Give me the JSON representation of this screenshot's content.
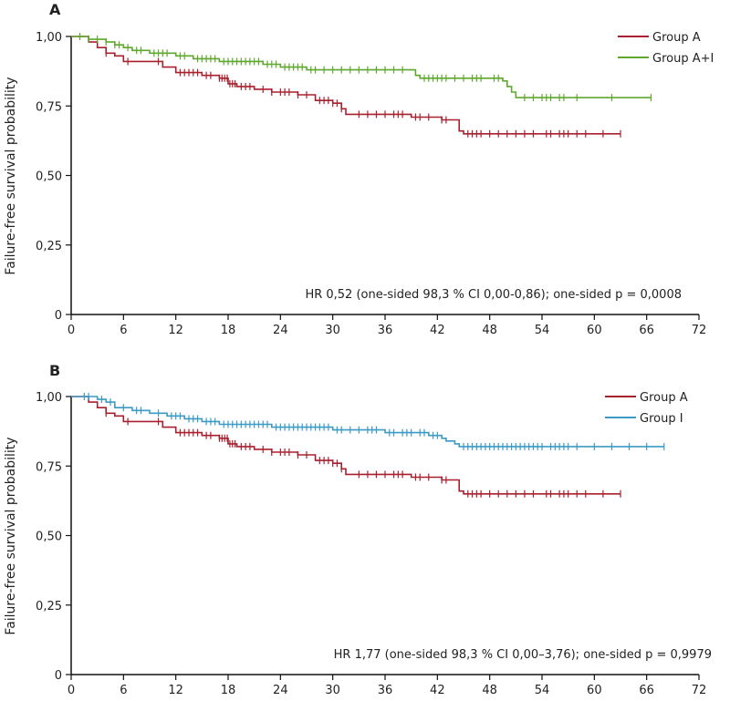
{
  "chart_data": [
    {
      "panel_label": "A",
      "type": "line",
      "step": true,
      "ylabel": "Failure-free survival probability",
      "xlim": [
        0,
        72
      ],
      "ylim": [
        0,
        1
      ],
      "xticks": [
        0,
        6,
        12,
        18,
        24,
        30,
        36,
        42,
        48,
        54,
        60,
        66,
        72
      ],
      "yticks": [
        0,
        0.25,
        0.5,
        0.75,
        1.0
      ],
      "ytick_labels": [
        "0",
        "0,25",
        "0,50",
        "0,75",
        "1,00"
      ],
      "annotation": "HR 0,52 (one-sided 98,3 % CI 0,00-0,86); one-sided p = 0,0008",
      "legend_position": "top-right",
      "series": [
        {
          "name": "Group A",
          "color": "#a8202e",
          "points": [
            [
              0,
              1.0
            ],
            [
              2,
              0.98
            ],
            [
              3,
              0.96
            ],
            [
              4,
              0.94
            ],
            [
              5,
              0.93
            ],
            [
              6,
              0.91
            ],
            [
              9.5,
              0.91
            ],
            [
              10.5,
              0.89
            ],
            [
              12,
              0.87
            ],
            [
              15,
              0.86
            ],
            [
              17,
              0.85
            ],
            [
              18,
              0.83
            ],
            [
              19,
              0.82
            ],
            [
              21,
              0.81
            ],
            [
              23,
              0.8
            ],
            [
              26,
              0.79
            ],
            [
              28,
              0.77
            ],
            [
              30,
              0.76
            ],
            [
              31,
              0.74
            ],
            [
              31.5,
              0.72
            ],
            [
              38.5,
              0.72
            ],
            [
              39,
              0.71
            ],
            [
              42,
              0.71
            ],
            [
              42.5,
              0.7
            ],
            [
              44,
              0.7
            ],
            [
              44.5,
              0.66
            ],
            [
              45,
              0.65
            ],
            [
              63,
              0.65
            ]
          ],
          "censors": [
            4,
            6.5,
            10,
            12.5,
            13,
            13.5,
            14,
            14.5,
            15.5,
            16,
            17,
            17.3,
            17.6,
            17.9,
            18.2,
            18.5,
            18.8,
            19.5,
            20,
            20.5,
            22,
            23,
            24,
            24.5,
            25,
            26,
            27,
            28.5,
            29,
            29.5,
            30,
            30.5,
            31,
            33,
            34,
            35,
            36,
            37,
            37.5,
            38,
            39.5,
            40,
            41,
            42.5,
            43,
            45.5,
            46,
            46.5,
            47,
            48,
            49,
            50,
            51,
            52,
            53,
            54.5,
            55,
            56,
            56.5,
            57,
            58,
            59,
            61,
            63
          ]
        },
        {
          "name": "Group A+I",
          "color": "#5fa82e",
          "points": [
            [
              0,
              1.0
            ],
            [
              2,
              0.99
            ],
            [
              4,
              0.98
            ],
            [
              5,
              0.97
            ],
            [
              6,
              0.96
            ],
            [
              7,
              0.95
            ],
            [
              9,
              0.94
            ],
            [
              12,
              0.93
            ],
            [
              14,
              0.92
            ],
            [
              17,
              0.91
            ],
            [
              22,
              0.9
            ],
            [
              24,
              0.89
            ],
            [
              27,
              0.88
            ],
            [
              39,
              0.88
            ],
            [
              39.5,
              0.86
            ],
            [
              40,
              0.85
            ],
            [
              48,
              0.85
            ],
            [
              49.5,
              0.84
            ],
            [
              50,
              0.82
            ],
            [
              50.5,
              0.8
            ],
            [
              51,
              0.78
            ],
            [
              66.5,
              0.78
            ]
          ],
          "censors": [
            1,
            2,
            3,
            4,
            5,
            5.5,
            6.5,
            7.5,
            8,
            9.5,
            10,
            10.5,
            11,
            12.5,
            13,
            14.5,
            15,
            15.5,
            16,
            16.5,
            17.5,
            18,
            18.5,
            19,
            19.5,
            20,
            20.5,
            21,
            21.5,
            22.5,
            23,
            23.5,
            24.5,
            25,
            25.5,
            26,
            26.5,
            27.5,
            28,
            29,
            30,
            31,
            32,
            33,
            34,
            35,
            36,
            37,
            38,
            40.5,
            41,
            41.5,
            42,
            42.5,
            43,
            44,
            45,
            46,
            46.5,
            47,
            48.5,
            49,
            52,
            53,
            54,
            54.5,
            55,
            56,
            56.5,
            58,
            62,
            66.5
          ]
        }
      ]
    },
    {
      "panel_label": "B",
      "type": "line",
      "step": true,
      "ylabel": "Failure-free survival probability",
      "xlim": [
        0,
        72
      ],
      "ylim": [
        0,
        1
      ],
      "xticks": [
        0,
        6,
        12,
        18,
        24,
        30,
        36,
        42,
        48,
        54,
        60,
        66,
        72
      ],
      "yticks": [
        0,
        0.25,
        0.5,
        0.75,
        1.0
      ],
      "ytick_labels": [
        "0",
        "0,25",
        "0,50",
        "0,75",
        "1,00"
      ],
      "annotation": "HR 1,77 (one-sided 98,3 % CI 0,00–3,76); one-sided p = 0,9979",
      "legend_position": "top-right",
      "series": [
        {
          "name": "Group A",
          "color": "#a8202e",
          "points": [
            [
              0,
              1.0
            ],
            [
              2,
              0.98
            ],
            [
              3,
              0.96
            ],
            [
              4,
              0.94
            ],
            [
              5,
              0.93
            ],
            [
              6,
              0.91
            ],
            [
              9.5,
              0.91
            ],
            [
              10.5,
              0.89
            ],
            [
              12,
              0.87
            ],
            [
              15,
              0.86
            ],
            [
              17,
              0.85
            ],
            [
              18,
              0.83
            ],
            [
              19,
              0.82
            ],
            [
              21,
              0.81
            ],
            [
              23,
              0.8
            ],
            [
              26,
              0.79
            ],
            [
              28,
              0.77
            ],
            [
              30,
              0.76
            ],
            [
              31,
              0.74
            ],
            [
              31.5,
              0.72
            ],
            [
              38.5,
              0.72
            ],
            [
              39,
              0.71
            ],
            [
              42,
              0.71
            ],
            [
              42.5,
              0.7
            ],
            [
              44,
              0.7
            ],
            [
              44.5,
              0.66
            ],
            [
              45,
              0.65
            ],
            [
              63,
              0.65
            ]
          ],
          "censors": [
            4,
            6.5,
            10,
            12.5,
            13,
            13.5,
            14,
            14.5,
            15.5,
            16,
            17,
            17.3,
            17.6,
            17.9,
            18.2,
            18.5,
            18.8,
            19.5,
            20,
            20.5,
            22,
            23,
            24,
            24.5,
            25,
            26,
            27,
            28.5,
            29,
            29.5,
            30,
            30.5,
            31,
            33,
            34,
            35,
            36,
            37,
            37.5,
            38,
            39.5,
            40,
            41,
            42.5,
            43,
            45.5,
            46,
            46.5,
            47,
            48,
            49,
            50,
            51,
            52,
            53,
            54.5,
            55,
            56,
            56.5,
            57,
            58,
            59,
            61,
            63
          ]
        },
        {
          "name": "Group I",
          "color": "#3b9bc5",
          "points": [
            [
              0,
              1.0
            ],
            [
              3,
              0.99
            ],
            [
              4,
              0.98
            ],
            [
              5,
              0.96
            ],
            [
              7,
              0.95
            ],
            [
              9,
              0.94
            ],
            [
              11,
              0.93
            ],
            [
              13,
              0.92
            ],
            [
              15,
              0.91
            ],
            [
              17,
              0.9
            ],
            [
              23,
              0.89
            ],
            [
              30,
              0.88
            ],
            [
              36,
              0.87
            ],
            [
              41,
              0.86
            ],
            [
              42.5,
              0.85
            ],
            [
              43,
              0.84
            ],
            [
              44,
              0.83
            ],
            [
              44.5,
              0.82
            ],
            [
              68,
              0.82
            ]
          ],
          "censors": [
            1.5,
            2,
            3.5,
            4.5,
            6,
            7.5,
            8,
            10,
            11.5,
            12,
            12.5,
            13.5,
            14,
            14.5,
            15.5,
            16,
            16.5,
            17.5,
            18,
            18.5,
            19,
            19.5,
            20,
            20.5,
            21,
            21.5,
            22,
            22.5,
            23.5,
            24,
            24.5,
            25,
            25.5,
            26,
            26.5,
            27,
            27.5,
            28,
            28.5,
            29,
            29.5,
            30.5,
            31,
            32,
            33,
            34,
            34.5,
            35,
            36.5,
            37,
            38,
            38.5,
            39,
            40,
            40.5,
            41.5,
            42,
            45,
            45.5,
            46,
            46.5,
            47,
            47.5,
            48,
            48.5,
            49,
            49.5,
            50,
            50.5,
            51,
            51.5,
            52,
            52.5,
            53,
            53.5,
            54,
            55,
            55.5,
            56,
            56.5,
            57,
            58,
            60,
            62,
            64,
            66,
            68
          ]
        }
      ]
    }
  ]
}
